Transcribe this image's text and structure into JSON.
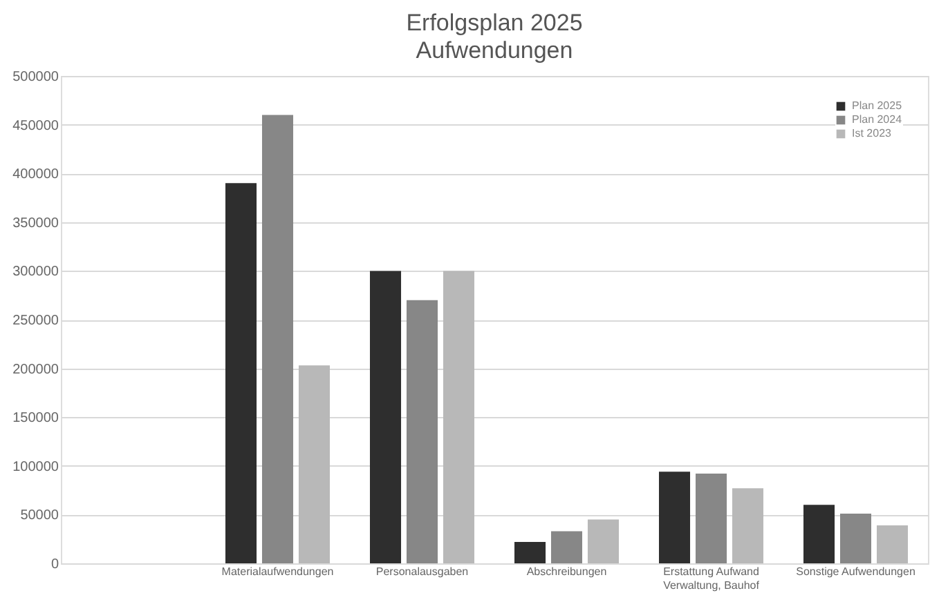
{
  "chart_data": {
    "type": "bar",
    "title": "Erfolgsplan 2025",
    "subtitle": "Aufwendungen",
    "categories": [
      null,
      "Materialaufwendungen",
      "Personalausgaben",
      "Abschreibungen",
      "Erstattung Aufwand Verwaltung, Bauhof",
      "Sonstige Aufwendungen"
    ],
    "series": [
      {
        "name": "Plan 2025",
        "color": "#2e2e2e",
        "values": [
          null,
          390000,
          300000,
          22000,
          94000,
          60000
        ]
      },
      {
        "name": "Plan 2024",
        "color": "#878787",
        "values": [
          null,
          460000,
          270000,
          33000,
          92000,
          51000
        ]
      },
      {
        "name": "Ist 2023",
        "color": "#b8b8b8",
        "values": [
          null,
          203000,
          300000,
          45000,
          77000,
          39000
        ]
      }
    ],
    "ylim": [
      0,
      500000
    ],
    "yticks": [
      0,
      50000,
      100000,
      150000,
      200000,
      250000,
      300000,
      350000,
      400000,
      450000,
      500000
    ],
    "grid": "y",
    "legend": "top right"
  }
}
